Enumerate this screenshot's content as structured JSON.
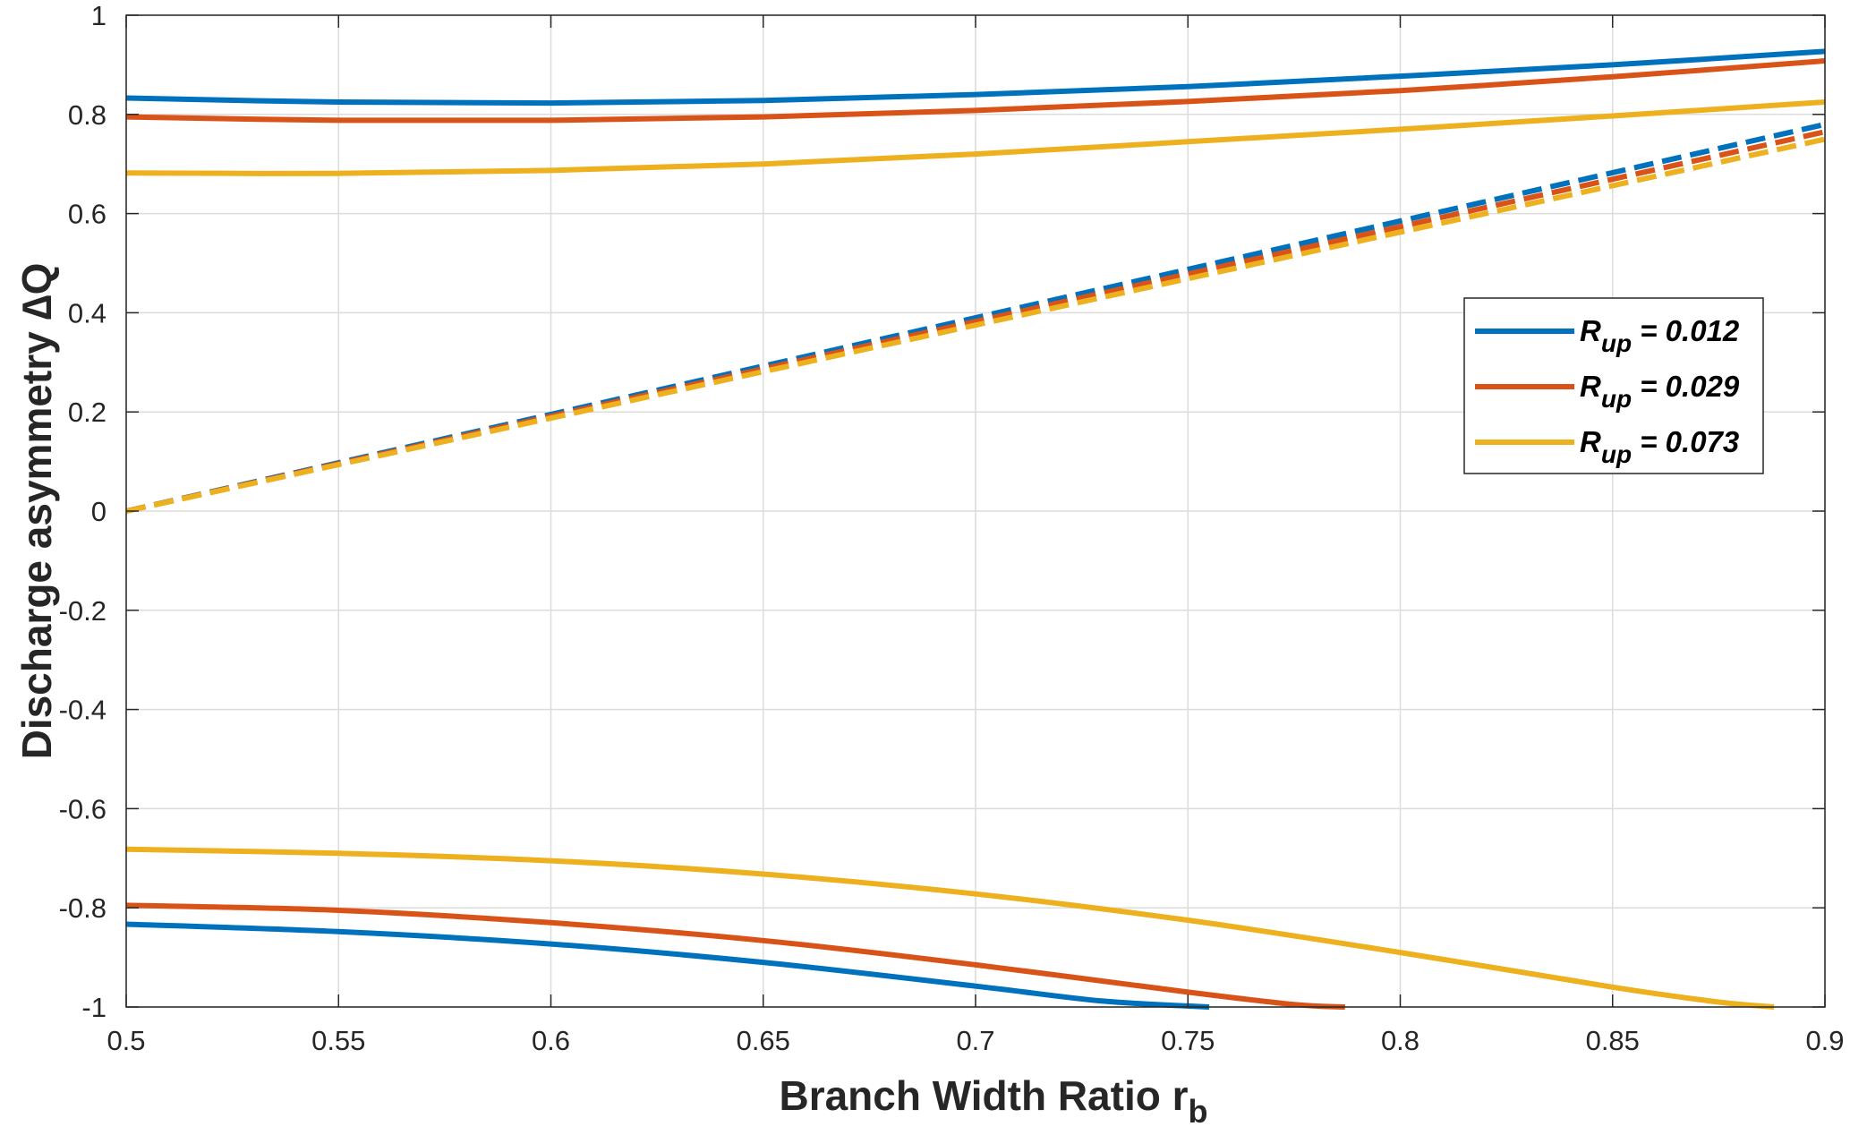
{
  "chart_data": {
    "type": "line",
    "title": "",
    "xlabel": "Branch Width Ratio r",
    "xlabel_sub": "b",
    "ylabel": "Discharge asymmetry ∆Q",
    "xlim": [
      0.5,
      0.9
    ],
    "ylim": [
      -1,
      1
    ],
    "grid": true,
    "x_ticks": [
      0.5,
      0.55,
      0.6,
      0.65,
      0.7,
      0.75,
      0.8,
      0.85,
      0.9
    ],
    "x_tick_labels": [
      "0.5",
      "0.55",
      "0.6",
      "0.65",
      "0.7",
      "0.75",
      "0.8",
      "0.85",
      "0.9"
    ],
    "y_ticks": [
      1,
      0.8,
      0.6,
      0.4,
      0.2,
      0,
      -0.2,
      -0.4,
      -0.6,
      -0.8,
      -1
    ],
    "y_tick_labels": [
      "1",
      "0.8",
      "0.6",
      "0.4",
      "0.2",
      "0",
      "-0.2",
      "-0.4",
      "-0.6",
      "-0.8",
      "-1"
    ],
    "legend_position": "center-right",
    "legend": [
      {
        "label": "R",
        "sub": "up",
        "value": " = 0.012",
        "color": "#0072BD"
      },
      {
        "label": "R",
        "sub": "up",
        "value": " = 0.029",
        "color": "#D95319"
      },
      {
        "label": "R",
        "sub": "up",
        "value": " = 0.073",
        "color": "#EDB120"
      }
    ],
    "series": [
      {
        "name": "R_up = 0.012 upper",
        "color": "#0072BD",
        "style": "solid",
        "x": [
          0.5,
          0.55,
          0.6,
          0.65,
          0.7,
          0.75,
          0.8,
          0.85,
          0.9
        ],
        "y": [
          0.833,
          0.825,
          0.823,
          0.828,
          0.84,
          0.856,
          0.877,
          0.9,
          0.927
        ]
      },
      {
        "name": "R_up = 0.029 upper",
        "color": "#D95319",
        "style": "solid",
        "x": [
          0.5,
          0.55,
          0.6,
          0.65,
          0.7,
          0.75,
          0.8,
          0.85,
          0.9
        ],
        "y": [
          0.795,
          0.788,
          0.788,
          0.795,
          0.808,
          0.826,
          0.848,
          0.876,
          0.908
        ]
      },
      {
        "name": "R_up = 0.073 upper",
        "color": "#EDB120",
        "style": "solid",
        "x": [
          0.5,
          0.55,
          0.6,
          0.65,
          0.7,
          0.75,
          0.8,
          0.85,
          0.9
        ],
        "y": [
          0.682,
          0.681,
          0.687,
          0.7,
          0.72,
          0.745,
          0.77,
          0.797,
          0.825
        ]
      },
      {
        "name": "R_up = 0.012 lower",
        "color": "#0072BD",
        "style": "solid",
        "x": [
          0.5,
          0.55,
          0.6,
          0.65,
          0.7,
          0.73,
          0.755
        ],
        "y": [
          -0.833,
          -0.848,
          -0.873,
          -0.91,
          -0.958,
          -0.988,
          -1.0
        ]
      },
      {
        "name": "R_up = 0.029 lower",
        "color": "#D95319",
        "style": "solid",
        "x": [
          0.5,
          0.55,
          0.6,
          0.65,
          0.7,
          0.75,
          0.775,
          0.787
        ],
        "y": [
          -0.795,
          -0.805,
          -0.83,
          -0.866,
          -0.915,
          -0.97,
          -0.995,
          -1.0
        ]
      },
      {
        "name": "R_up = 0.073 lower",
        "color": "#EDB120",
        "style": "solid",
        "x": [
          0.5,
          0.55,
          0.6,
          0.65,
          0.7,
          0.75,
          0.8,
          0.85,
          0.875,
          0.888
        ],
        "y": [
          -0.682,
          -0.69,
          -0.705,
          -0.732,
          -0.772,
          -0.825,
          -0.89,
          -0.96,
          -0.99,
          -1.0
        ]
      },
      {
        "name": "R_up = 0.012 dashed",
        "color": "#0072BD",
        "style": "dashed",
        "x": [
          0.5,
          0.9
        ],
        "y": [
          0.0,
          0.78
        ]
      },
      {
        "name": "R_up = 0.029 dashed",
        "color": "#D95319",
        "style": "dashed",
        "x": [
          0.5,
          0.9
        ],
        "y": [
          0.0,
          0.765
        ]
      },
      {
        "name": "R_up = 0.073 dashed",
        "color": "#EDB120",
        "style": "dashed",
        "x": [
          0.5,
          0.9
        ],
        "y": [
          0.0,
          0.75
        ]
      }
    ]
  }
}
